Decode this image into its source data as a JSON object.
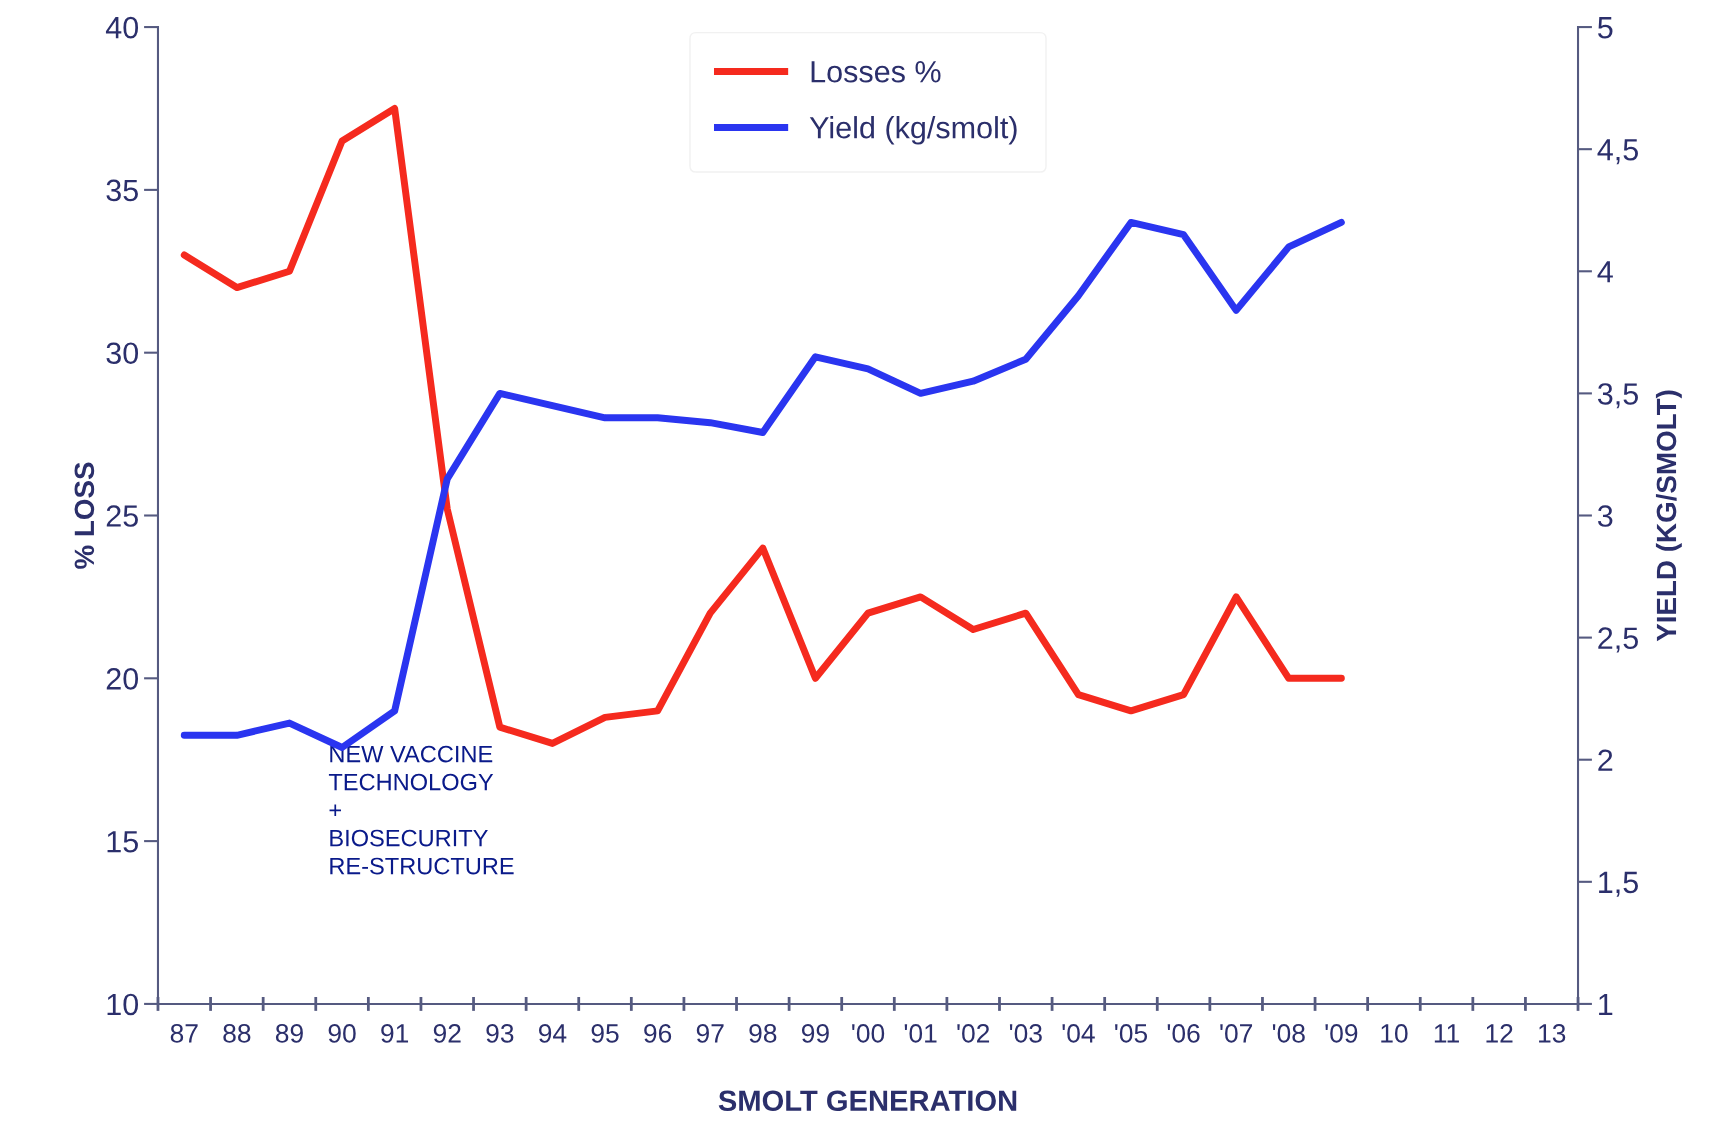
{
  "chart_data": {
    "type": "line",
    "xlabel": "SMOLT GENERATION",
    "ylabel": "% LOSS",
    "y2label": "YIELD (KG/SMOLT)",
    "categories": [
      "87",
      "88",
      "89",
      "90",
      "91",
      "92",
      "93",
      "94",
      "95",
      "96",
      "97",
      "98",
      "99",
      "'00",
      "'01",
      "'02",
      "'03",
      "'04",
      "'05",
      "'06",
      "'07",
      "'08",
      "'09",
      "10",
      "11",
      "12",
      "13"
    ],
    "series": [
      {
        "name": "Losses %",
        "color": "#f52a1e",
        "values": [
          33.0,
          32.0,
          32.5,
          36.5,
          37.5,
          25.2,
          18.5,
          18.0,
          18.8,
          19.0,
          22.0,
          24.0,
          20.0,
          22.0,
          22.5,
          21.5,
          22.0,
          19.5,
          19.0,
          19.5,
          22.5,
          20.0,
          20.0,
          null,
          null,
          null,
          null
        ]
      },
      {
        "name": "Yield (kg/smolt)",
        "color": "#2a35f0",
        "axis": "y2",
        "values": [
          2.1,
          2.1,
          2.15,
          2.05,
          2.2,
          3.15,
          3.5,
          3.45,
          3.4,
          3.4,
          3.38,
          3.34,
          3.65,
          3.6,
          3.5,
          3.55,
          3.64,
          3.9,
          4.2,
          4.15,
          3.84,
          4.1,
          4.2,
          null,
          null,
          null,
          null
        ]
      }
    ],
    "ylim": [
      10,
      40
    ],
    "yticks": [
      10,
      15,
      20,
      25,
      30,
      35,
      40
    ],
    "y2lim": [
      1,
      5
    ],
    "y2ticks": [
      1,
      {
        "value": 1.5,
        "label": "1,5"
      },
      2,
      {
        "value": 2.5,
        "label": "2,5"
      },
      3,
      {
        "value": 3.5,
        "label": "3,5"
      },
      4,
      {
        "value": 4.5,
        "label": "4,5"
      },
      5
    ],
    "annotations": [
      "NEW VACCINE\nTECHNOLOGY\n+\nBIOSECURITY\nRE-STRUCTURE"
    ],
    "legend": "top",
    "grid": false,
    "marker": "none",
    "line_style": "solid"
  }
}
